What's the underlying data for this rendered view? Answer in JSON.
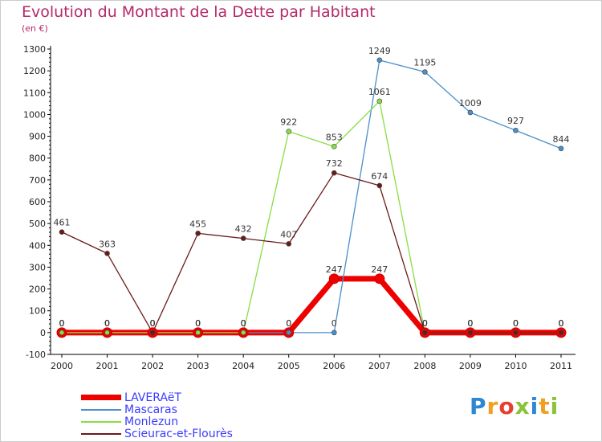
{
  "chart_data": {
    "type": "line",
    "title": "Evolution du Montant de la Dette par Habitant",
    "subtitle": "(en €)",
    "x": [
      "2000",
      "2001",
      "2002",
      "2003",
      "2004",
      "2005",
      "2006",
      "2007",
      "2008",
      "2009",
      "2010",
      "2011"
    ],
    "yticks": [
      "-100",
      "0",
      "100",
      "200",
      "300",
      "400",
      "500",
      "600",
      "700",
      "800",
      "900",
      "1000",
      "1100",
      "1200",
      "1300"
    ],
    "ylim": [
      -100,
      1300
    ],
    "grid": false,
    "legend_position": "bottom-left",
    "series": [
      {
        "name": "LAVERAëT",
        "color": "#ee0000",
        "values": [
          0,
          0,
          0,
          0,
          0,
          0,
          247,
          247,
          0,
          0,
          0,
          0
        ],
        "labels": [
          "0",
          "0",
          "0",
          "0",
          "0",
          "0",
          "247",
          "247",
          "0",
          "0",
          "0",
          "0"
        ]
      },
      {
        "name": "Mascaras",
        "color": "#4a8fcc",
        "values": [
          0,
          0,
          0,
          0,
          0,
          0,
          0,
          1249,
          1195,
          1009,
          927,
          844
        ],
        "labels": [
          "0",
          "0",
          "0",
          "0",
          "0",
          "0",
          "0",
          "1249",
          "1195",
          "1009",
          "927",
          "844"
        ]
      },
      {
        "name": "Monlezun",
        "color": "#88dd44",
        "values": [
          0,
          0,
          0,
          0,
          0,
          922,
          853,
          1061,
          0,
          0,
          0,
          0
        ],
        "labels": [
          "0",
          "0",
          "0",
          "0",
          "0",
          "922",
          "853",
          "1061",
          "0",
          "0",
          "0",
          "0"
        ]
      },
      {
        "name": "Scieurac-et-Flourès",
        "color": "#6b1a1a",
        "values": [
          461,
          363,
          0,
          455,
          432,
          407,
          732,
          674,
          0,
          0,
          0,
          0
        ],
        "labels": [
          "461",
          "363",
          "0",
          "455",
          "432",
          "407",
          "732",
          "674",
          "0",
          "0",
          "0",
          "0"
        ]
      }
    ]
  },
  "logo": {
    "letters": [
      "P",
      "r",
      "o",
      "x",
      "i",
      "t",
      "i"
    ],
    "colors": [
      "#2e86d4",
      "#f0a020",
      "#e84030",
      "#8ac23a",
      "#2e86d4",
      "#f0a020",
      "#8ac23a"
    ],
    "name": "Proxiti"
  }
}
